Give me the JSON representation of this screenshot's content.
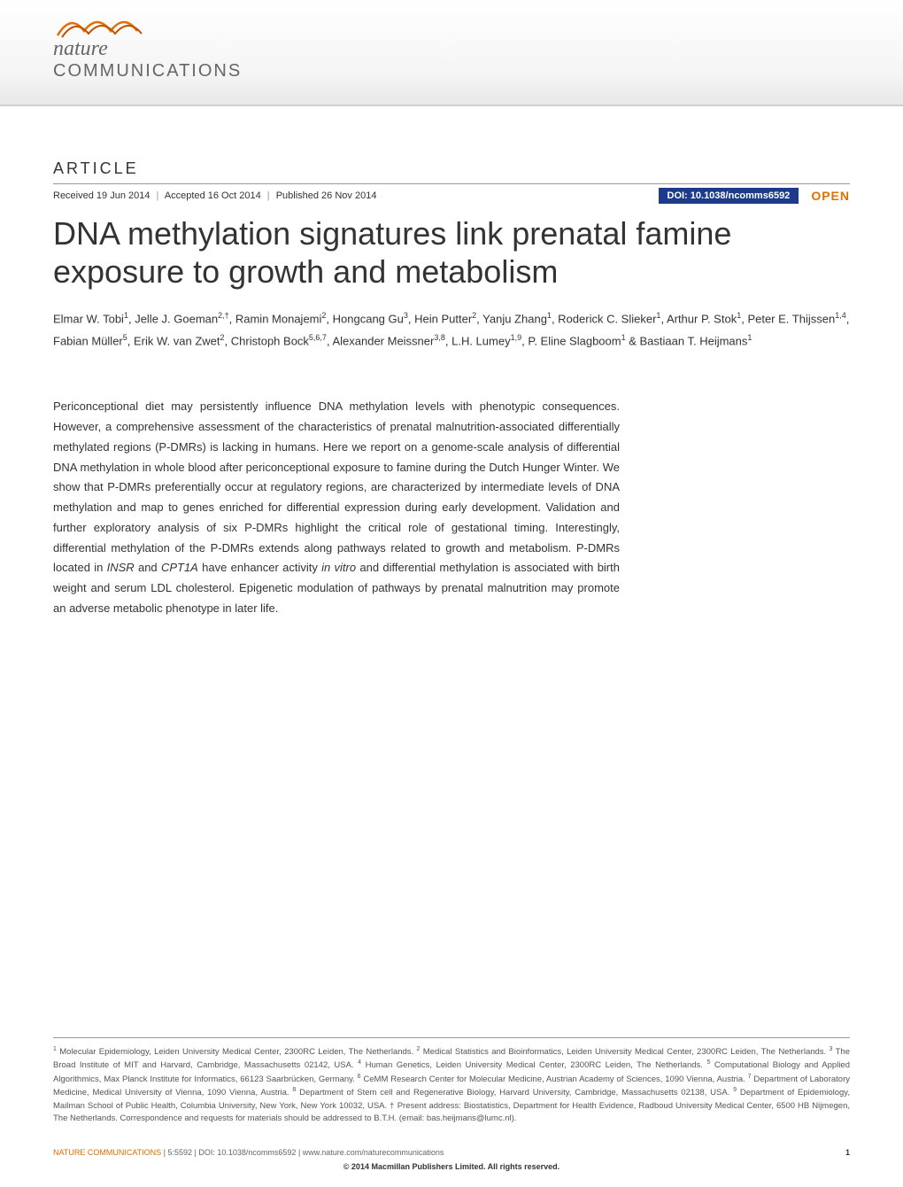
{
  "journal": {
    "name_line1": "nature",
    "name_line2": "COMMUNICATIONS",
    "logo_wave_color": "#e07000"
  },
  "article": {
    "label": "ARTICLE",
    "received": "Received 19 Jun 2014",
    "accepted": "Accepted 16 Oct 2014",
    "published": "Published 26 Nov 2014",
    "doi": "DOI: 10.1038/ncomms6592",
    "open_access": "OPEN",
    "title": "DNA methylation signatures link prenatal famine exposure to growth and metabolism"
  },
  "authors_html": "Elmar W. Tobi<sup>1</sup>, Jelle J. Goeman<sup>2,†</sup>, Ramin Monajemi<sup>2</sup>, Hongcang Gu<sup>3</sup>, Hein Putter<sup>2</sup>, Yanju Zhang<sup>1</sup>, Roderick C. Slieker<sup>1</sup>, Arthur P. Stok<sup>1</sup>, Peter E. Thijssen<sup>1,4</sup>, Fabian Müller<sup>5</sup>, Erik W. van Zwet<sup>2</sup>, Christoph Bock<sup>5,6,7</sup>, Alexander Meissner<sup>3,8</sup>, L.H. Lumey<sup>1,9</sup>, P. Eline Slagboom<sup>1</sup> & Bastiaan T. Heijmans<sup>1</sup>",
  "abstract_html": "Periconceptional diet may persistently influence DNA methylation levels with phenotypic consequences. However, a comprehensive assessment of the characteristics of prenatal malnutrition-associated differentially methylated regions (P-DMRs) is lacking in humans. Here we report on a genome-scale analysis of differential DNA methylation in whole blood after periconceptional exposure to famine during the Dutch Hunger Winter. We show that P-DMRs preferentially occur at regulatory regions, are characterized by intermediate levels of DNA methylation and map to genes enriched for differential expression during early development. Validation and further exploratory analysis of six P-DMRs highlight the critical role of gestational timing. Interestingly, differential methylation of the P-DMRs extends along pathways related to growth and metabolism. P-DMRs located in <span class=\"ital\">INSR</span> and <span class=\"ital\">CPT1A</span> have enhancer activity <span class=\"ital\">in vitro</span> and differential methylation is associated with birth weight and serum LDL cholesterol. Epigenetic modulation of pathways by prenatal malnutrition may promote an adverse metabolic phenotype in later life.",
  "affiliations_html": "<sup>1</sup> Molecular Epidemiology, Leiden University Medical Center, 2300RC Leiden, The Netherlands. <sup>2</sup> Medical Statistics and Bioinformatics, Leiden University Medical Center, 2300RC Leiden, The Netherlands. <sup>3</sup> The Broad Institute of MIT and Harvard, Cambridge, Massachusetts 02142, USA. <sup>4</sup> Human Genetics, Leiden University Medical Center, 2300RC Leiden, The Netherlands. <sup>5</sup> Computational Biology and Applied Algorithmics, Max Planck Institute for Informatics, 66123 Saarbrücken, Germany. <sup>6</sup> CeMM Research Center for Molecular Medicine, Austrian Academy of Sciences, 1090 Vienna, Austria. <sup>7</sup> Department of Laboratory Medicine, Medical University of Vienna, 1090 Vienna, Austria. <sup>8</sup> Department of Stem cell and Regenerative Biology, Harvard University, Cambridge, Massachusetts 02138, USA. <sup>9</sup> Department of Epidemiology, Mailman School of Public Health, Columbia University, New York, New York 10032, USA. † Present address: Biostatistics, Department for Health Evidence, Radboud University Medical Center, 6500 HB Nijmegen, The Netherlands. Correspondence and requests for materials should be addressed to B.T.H. (email: bas.heijmans@lumc.nl).",
  "footer": {
    "citation_brand": "NATURE COMMUNICATIONS",
    "citation_rest": " | 5:5592 | DOI: 10.1038/ncomms6592 | www.nature.com/naturecommunications",
    "page": "1",
    "copyright": "© 2014 Macmillan Publishers Limited. All rights reserved."
  },
  "colors": {
    "doi_bg": "#1e3a8a",
    "accent": "#e07000",
    "text": "#333333",
    "rule": "#999999"
  }
}
